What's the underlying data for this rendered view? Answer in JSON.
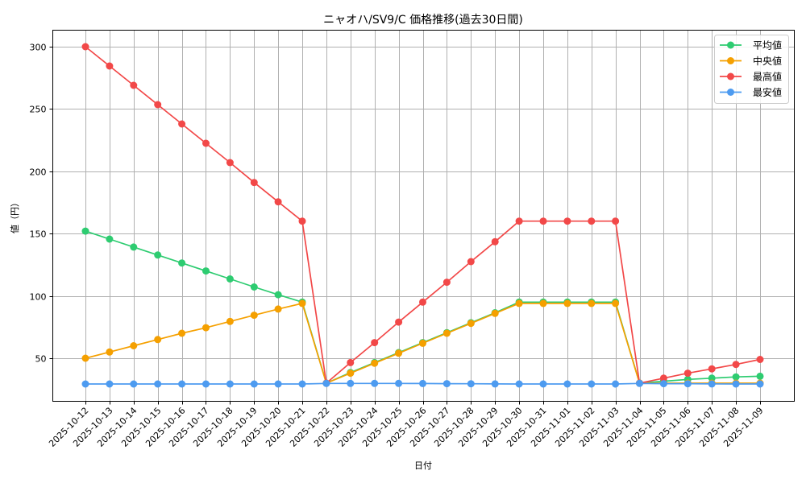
{
  "chart_data": {
    "type": "line",
    "title": "ニャオハ/SV9/C 価格推移(過去30日間)",
    "xlabel": "日付",
    "ylabel": "値（円）",
    "ylim": [
      15.7,
      313.5
    ],
    "yticks": [
      50,
      100,
      150,
      200,
      250,
      300
    ],
    "grid": true,
    "legend_position": "upper right",
    "categories": [
      "2025-10-12",
      "2025-10-13",
      "2025-10-14",
      "2025-10-15",
      "2025-10-16",
      "2025-10-17",
      "2025-10-18",
      "2025-10-19",
      "2025-10-20",
      "2025-10-21",
      "2025-10-22",
      "2025-10-23",
      "2025-10-24",
      "2025-10-25",
      "2025-10-26",
      "2025-10-27",
      "2025-10-28",
      "2025-10-29",
      "2025-10-30",
      "2025-10-31",
      "2025-11-01",
      "2025-11-02",
      "2025-11-03",
      "2025-11-04",
      "2025-11-05",
      "2025-11-06",
      "2025-11-07",
      "2025-11-08",
      "2025-11-09"
    ],
    "series": [
      {
        "name": "平均値",
        "color": "#2ecc71",
        "values": [
          152,
          145.6,
          139.2,
          132.8,
          126.4,
          120,
          113.6,
          107.2,
          101,
          95,
          30,
          38.5,
          46.5,
          54.5,
          62.5,
          70.5,
          78.5,
          86.5,
          95,
          95,
          95,
          95,
          95,
          30,
          31.5,
          33,
          34,
          35,
          35.5
        ]
      },
      {
        "name": "中央値",
        "color": "#f5a000",
        "values": [
          50,
          55,
          60,
          65,
          70,
          74.5,
          79.5,
          84.5,
          89.5,
          94,
          30,
          38,
          46,
          54,
          62,
          70,
          78,
          86,
          94,
          94,
          94,
          94,
          94,
          30,
          30,
          30,
          30,
          30,
          30
        ]
      },
      {
        "name": "最高値",
        "color": "#f24848",
        "values": [
          300,
          284.5,
          269,
          253.5,
          238,
          222.5,
          207,
          191,
          175.5,
          160,
          30,
          46.5,
          62.5,
          79,
          95,
          111,
          127.5,
          143.5,
          160,
          160,
          160,
          160,
          160,
          30,
          34,
          38,
          41.5,
          45,
          49
        ]
      },
      {
        "name": "最安値",
        "color": "#4d9bf0",
        "values": [
          29.3,
          29.3,
          29.3,
          29.3,
          29.3,
          29.3,
          29.3,
          29.3,
          29.3,
          29.3,
          29.8,
          29.8,
          29.8,
          29.8,
          29.7,
          29.6,
          29.5,
          29.4,
          29.3,
          29.3,
          29.3,
          29.3,
          29.3,
          29.8,
          29.6,
          29.5,
          29.4,
          29.3,
          29.3
        ]
      }
    ]
  },
  "legend": {
    "items": [
      "平均値",
      "中央値",
      "最高値",
      "最安値"
    ]
  }
}
